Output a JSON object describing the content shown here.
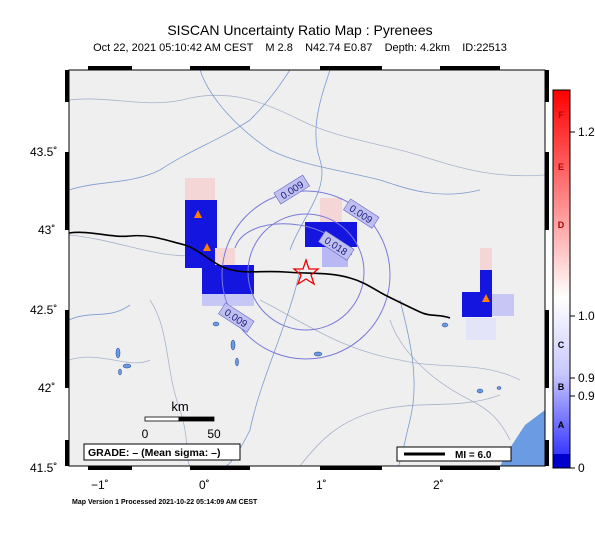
{
  "title": "SISCAN Uncertainty Ratio Map : Pyrenees",
  "subtitle": "Oct 22, 2021 05:10:42 AM CEST    M 2.8    N42.74 E0.87    Depth: 4.2km    ID:22513",
  "footer": "Map Version 1 Processed 2021-10-22 05:14:09 AM CEST",
  "axes": {
    "lat_ticks": [
      "43.5˚",
      "43˚",
      "42.5˚",
      "42˚",
      "41.5˚"
    ],
    "lon_ticks": [
      "−1˚",
      "0˚",
      "1˚",
      "2˚"
    ]
  },
  "scale": {
    "title": "km",
    "left": "0",
    "right": "50"
  },
  "grade": "GRADE: – (Mean sigma: –)",
  "mi_legend": "MI = 6.0",
  "contour_labels": [
    "0.009",
    "0.009",
    "0.009",
    "0.018"
  ],
  "colorbar": {
    "letters": [
      "F",
      "E",
      "D",
      "C",
      "B",
      "A"
    ],
    "values": [
      "1.2",
      "1.0",
      "0.9",
      "0.9",
      "0"
    ],
    "colors": {
      "top": "#ff0000",
      "mid": "#ffffff",
      "bottom": "#0000ff"
    }
  },
  "colors": {
    "land": "#efefef",
    "sea": "#6b9be2",
    "epicenter": "#ee0000",
    "station": "#ff7f00",
    "river": "#7b9bd2"
  }
}
